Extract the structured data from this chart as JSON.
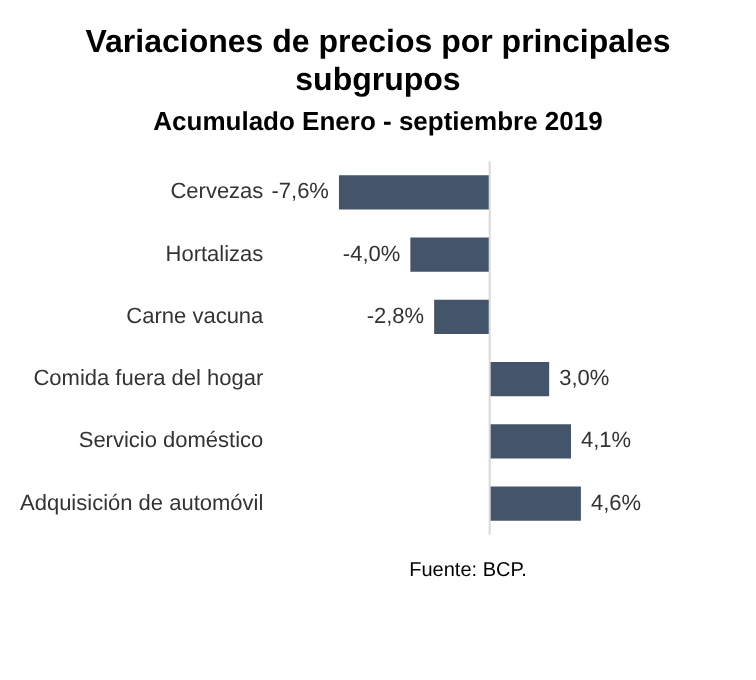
{
  "chart_data": {
    "type": "bar",
    "orientation": "horizontal",
    "title": "Variaciones de precios por principales subgrupos",
    "subtitle": "Acumulado Enero - septiembre 2019",
    "categories": [
      "Cervezas",
      "Hortalizas",
      "Carne vacuna",
      "Comida fuera del hogar",
      "Servicio doméstico",
      "Adquisición de automóvil"
    ],
    "values": [
      -7.6,
      -4.0,
      -2.8,
      3.0,
      4.1,
      4.6
    ],
    "value_labels": [
      "-7,6%",
      "-4,0%",
      "-2,8%",
      "3,0%",
      "4,1%",
      "4,6%"
    ],
    "color": "#44546a",
    "tick_labels": "y",
    "legend": false,
    "annotations": [
      "Fuente: BCP."
    ]
  }
}
